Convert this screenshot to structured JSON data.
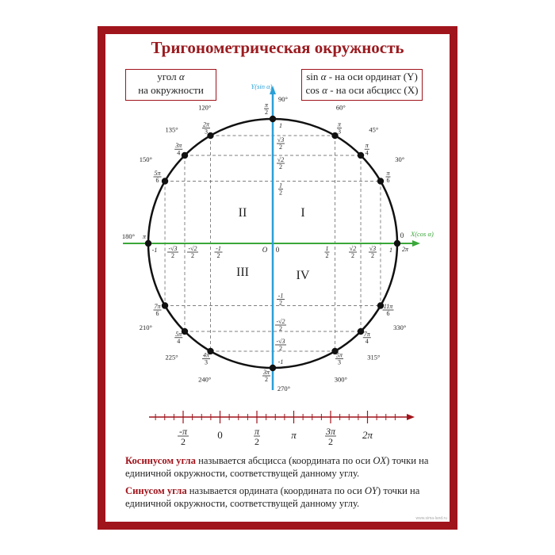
{
  "title": "Тригонометрическая окружность",
  "box_left": {
    "line1": "угол",
    "alpha": "α",
    "line2": "на окружности"
  },
  "box_right": {
    "line1_fn": "sin",
    "line1_alpha": "α",
    "line1_text": " - на оси ординат (Y)",
    "line2_fn": "cos",
    "line2_alpha": "α",
    "line2_text": " - на оси абсцисс (X)"
  },
  "axes": {
    "x_label": "X(cos α)",
    "y_label": "Y(sin α)",
    "origin": "O",
    "zero": "0",
    "x_color": "#3aa83a",
    "y_color": "#2aa0d8"
  },
  "quadrants": [
    "I",
    "II",
    "III",
    "IV"
  ],
  "angles": [
    {
      "deg": 0,
      "deg_label": "0",
      "rad": {
        "num": "2π",
        "den": ""
      }
    },
    {
      "deg": 30,
      "deg_label": "30°",
      "rad": {
        "num": "π",
        "den": "6"
      }
    },
    {
      "deg": 45,
      "deg_label": "45°",
      "rad": {
        "num": "π",
        "den": "4"
      }
    },
    {
      "deg": 60,
      "deg_label": "60°",
      "rad": {
        "num": "π",
        "den": "3"
      }
    },
    {
      "deg": 90,
      "deg_label": "90°",
      "rad": {
        "num": "π",
        "den": "2"
      }
    },
    {
      "deg": 120,
      "deg_label": "120°",
      "rad": {
        "num": "2π",
        "den": "3"
      }
    },
    {
      "deg": 135,
      "deg_label": "135°",
      "rad": {
        "num": "3π",
        "den": "4"
      }
    },
    {
      "deg": 150,
      "deg_label": "150°",
      "rad": {
        "num": "5π",
        "den": "6"
      }
    },
    {
      "deg": 180,
      "deg_label": "180°",
      "rad": {
        "num": "π",
        "den": ""
      }
    },
    {
      "deg": 210,
      "deg_label": "210°",
      "rad": {
        "num": "7π",
        "den": "6"
      }
    },
    {
      "deg": 225,
      "deg_label": "225°",
      "rad": {
        "num": "5π",
        "den": "4"
      }
    },
    {
      "deg": 240,
      "deg_label": "240°",
      "rad": {
        "num": "4π",
        "den": "3"
      }
    },
    {
      "deg": 270,
      "deg_label": "270°",
      "rad": {
        "num": "3π",
        "den": "2"
      }
    },
    {
      "deg": 300,
      "deg_label": "300°",
      "rad": {
        "num": "5π",
        "den": "3"
      }
    },
    {
      "deg": 315,
      "deg_label": "315°",
      "rad": {
        "num": "7π",
        "den": "4"
      }
    },
    {
      "deg": 330,
      "deg_label": "330°",
      "rad": {
        "num": "11π",
        "den": "6"
      }
    }
  ],
  "cos_ticks": [
    {
      "value": -1,
      "num": "-1",
      "den": ""
    },
    {
      "value": -0.866,
      "num": "-√3",
      "den": "2"
    },
    {
      "value": -0.707,
      "num": "-√2",
      "den": "2"
    },
    {
      "value": -0.5,
      "num": "-1",
      "den": "2"
    },
    {
      "value": 0.5,
      "num": "1",
      "den": "2"
    },
    {
      "value": 0.707,
      "num": "√2",
      "den": "2"
    },
    {
      "value": 0.866,
      "num": "√3",
      "den": "2"
    },
    {
      "value": 1,
      "num": "1",
      "den": ""
    }
  ],
  "sin_ticks": [
    {
      "value": 1,
      "num": "1",
      "den": ""
    },
    {
      "value": 0.866,
      "num": "√3",
      "den": "2"
    },
    {
      "value": 0.707,
      "num": "√2",
      "den": "2"
    },
    {
      "value": 0.5,
      "num": "1",
      "den": "2"
    },
    {
      "value": -0.5,
      "num": "-1",
      "den": "2"
    },
    {
      "value": -0.707,
      "num": "-√2",
      "den": "2"
    },
    {
      "value": -0.866,
      "num": "-√3",
      "den": "2"
    },
    {
      "value": -1,
      "num": "-1",
      "den": ""
    }
  ],
  "number_line": {
    "color": "#a0141c",
    "labels": [
      {
        "num": "-π",
        "den": "2"
      },
      {
        "num": "0",
        "den": ""
      },
      {
        "num": "π",
        "den": "2"
      },
      {
        "num": "π",
        "den": ""
      },
      {
        "num": "3π",
        "den": "2"
      },
      {
        "num": "2π",
        "den": ""
      }
    ]
  },
  "definitions": [
    {
      "term": "Косинусом угла",
      "text": " называется абсцисса (координата по оси ",
      "axis": "OX",
      "text2": ") точки на единичной окружности, соответствущей данному углу."
    },
    {
      "term": "Синусом угла",
      "text": " называется ордината (координата по оси ",
      "axis": "OY",
      "text2": ") точки на единичной окружности, соответствущей данному углу."
    }
  ],
  "watermark": "www.sima-land.ru",
  "colors": {
    "frame": "#a0141c",
    "title": "#9b1b20"
  }
}
